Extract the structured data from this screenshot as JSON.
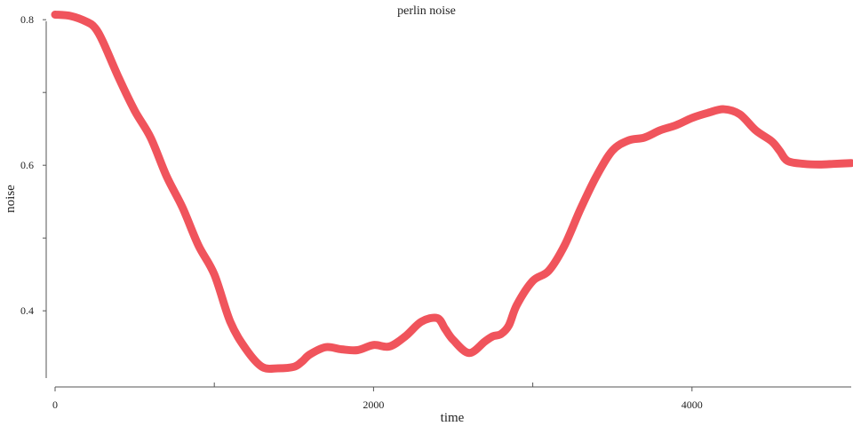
{
  "chart_data": {
    "type": "line",
    "title": "perlin noise",
    "xlabel": "time",
    "ylabel": "noise",
    "xlim": [
      0,
      5000
    ],
    "ylim": [
      0.31,
      0.81
    ],
    "x_major_ticks": [
      0,
      2000,
      4000
    ],
    "x_minor_ticks": [
      1000,
      3000
    ],
    "y_major_ticks": [
      0.4,
      0.6,
      0.8
    ],
    "y_minor_ticks": [
      0.5,
      0.7
    ],
    "x_tick_labels": [
      "0",
      "2000",
      "4000"
    ],
    "y_tick_labels": [
      "0.4",
      "0.6",
      "0.8"
    ],
    "grid": false,
    "series": [
      {
        "color": "#f0545c",
        "x": [
          0,
          100,
          200,
          250,
          300,
          400,
          500,
          600,
          700,
          800,
          900,
          1000,
          1100,
          1200,
          1300,
          1400,
          1500,
          1550,
          1600,
          1700,
          1800,
          1900,
          2000,
          2100,
          2200,
          2300,
          2400,
          2450,
          2500,
          2600,
          2700,
          2750,
          2800,
          2850,
          2900,
          3000,
          3100,
          3200,
          3300,
          3400,
          3500,
          3600,
          3700,
          3800,
          3900,
          4000,
          4100,
          4200,
          4300,
          4400,
          4500,
          4550,
          4600,
          4700,
          4800,
          4900,
          5000
        ],
        "y": [
          0.807,
          0.805,
          0.797,
          0.789,
          0.77,
          0.72,
          0.675,
          0.638,
          0.585,
          0.542,
          0.49,
          0.45,
          0.385,
          0.347,
          0.323,
          0.321,
          0.323,
          0.33,
          0.34,
          0.35,
          0.347,
          0.346,
          0.353,
          0.351,
          0.365,
          0.385,
          0.39,
          0.375,
          0.36,
          0.342,
          0.358,
          0.365,
          0.368,
          0.38,
          0.408,
          0.441,
          0.455,
          0.49,
          0.54,
          0.585,
          0.62,
          0.634,
          0.638,
          0.648,
          0.655,
          0.665,
          0.672,
          0.677,
          0.67,
          0.648,
          0.633,
          0.62,
          0.606,
          0.602,
          0.601,
          0.602,
          0.603
        ]
      }
    ]
  }
}
